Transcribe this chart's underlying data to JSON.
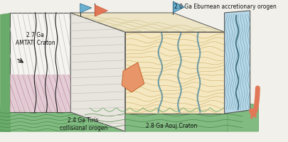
{
  "bg_color": "#f2f0ea",
  "labels": {
    "amtati": "2.7 Ga\nAMTATI Craton",
    "eburnean": "2.0 Ga Eburnean accretionary orogen",
    "tiris": "2.4 Ga Tiris\ncollisional orogen",
    "aouj": "2.8 Ga Aouj Craton"
  },
  "colors": {
    "green_base": "#82bb82",
    "green_dark": "#6aaa6a",
    "green_side": "#5a9a5a",
    "pink_zone": "#e0c0cc",
    "cream_zone": "#f5e8c0",
    "cream_top": "#ede5c5",
    "light_blue": "#b8d8e8",
    "blue_flag": "#6ab0d0",
    "red_flag": "#e07858",
    "orange_intrusion": "#e8956a",
    "white_rock": "#f5f4f0",
    "grey_rock": "#e8e5de",
    "line_dark": "#555555",
    "line_grey": "#aaaaaa",
    "teal_vein": "#5a8fa0",
    "teal_dark": "#3a6a7a"
  }
}
